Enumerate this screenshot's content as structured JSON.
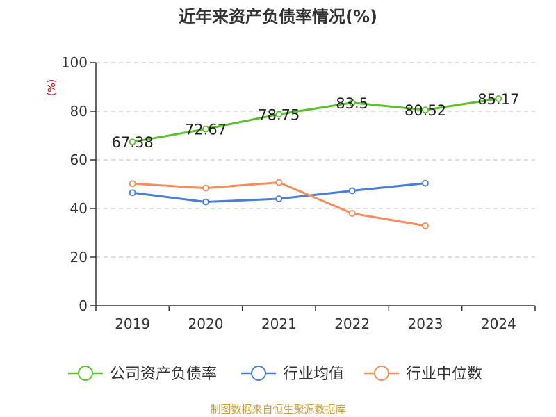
{
  "chart_data": {
    "type": "line",
    "title": "近年来资产负债率情况(%)",
    "ylabel": "(%)",
    "xlabel": "",
    "categories": [
      "2019",
      "2020",
      "2021",
      "2022",
      "2023",
      "2024"
    ],
    "ylim": [
      0,
      100
    ],
    "yticks": [
      "0",
      "20",
      "40",
      "60",
      "80",
      "100"
    ],
    "grid": true,
    "legend_position": "bottom",
    "series": [
      {
        "name": "公司资产负债率",
        "color": "#5ac12c",
        "values": [
          67.38,
          72.67,
          78.75,
          83.5,
          80.52,
          85.17
        ],
        "labels": [
          "67.38",
          "72.67",
          "78.75",
          "83.5",
          "80.52",
          "85.17"
        ]
      },
      {
        "name": "行业均值",
        "color": "#4a7fd6",
        "values": [
          46.5,
          42.7,
          44.0,
          47.3,
          50.4,
          null
        ]
      },
      {
        "name": "行业中位数",
        "color": "#f58d5c",
        "values": [
          50.2,
          48.4,
          50.7,
          38.0,
          32.9,
          null
        ]
      }
    ]
  },
  "source": "制图数据来自恒生聚源数据库"
}
